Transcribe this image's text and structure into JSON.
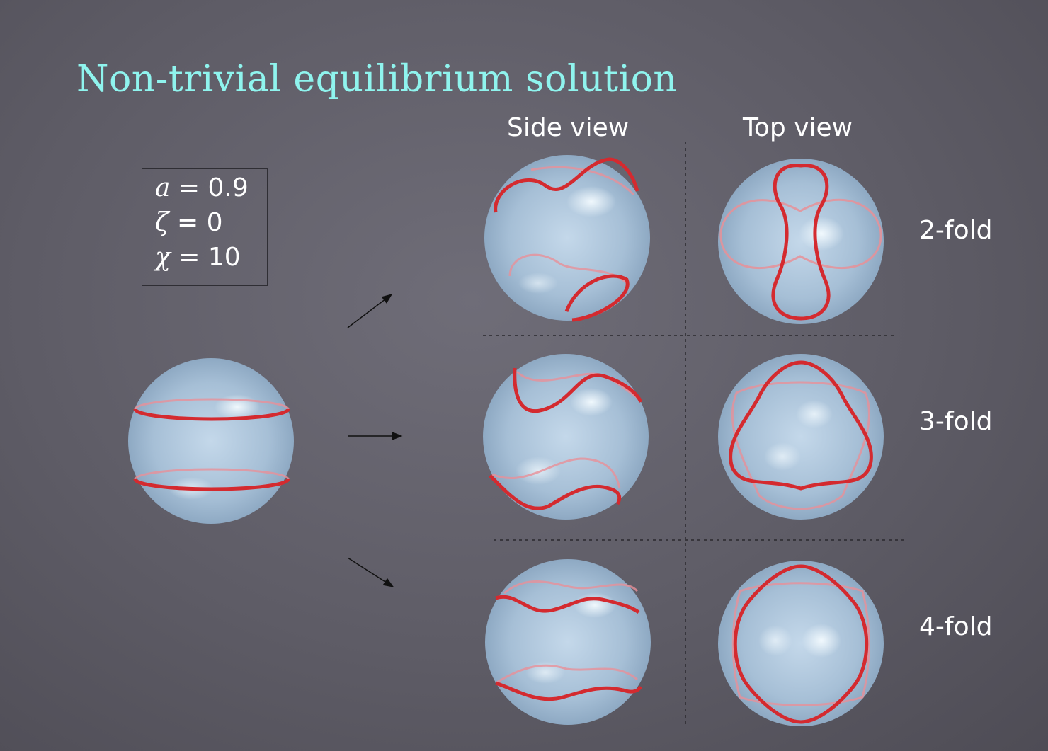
{
  "title": "Non-trivial equilibrium solution",
  "headers": {
    "side": "Side view",
    "top": "Top view"
  },
  "parameters": [
    {
      "symbol": "a",
      "value": "= 0.9"
    },
    {
      "symbol": "ζ",
      "value": "= 0"
    },
    {
      "symbol": "χ",
      "value": "= 10"
    }
  ],
  "folds": [
    "2-fold",
    "3-fold",
    "4-fold"
  ],
  "colors": {
    "title": "#8ff4ee",
    "ring": "#d42a2f",
    "sphere": "#a9c3da"
  }
}
